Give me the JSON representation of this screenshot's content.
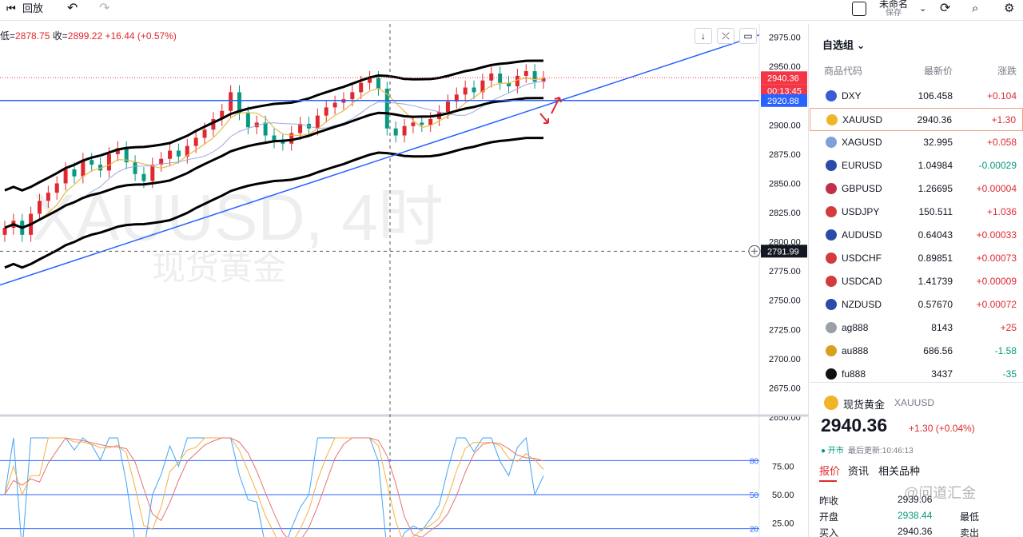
{
  "topbar": {
    "replay_label": "回放",
    "layout_name": "未命名",
    "save_label": "保存"
  },
  "ohlc": {
    "low_label": "低=",
    "low": "2878.75",
    "close_label": "收=",
    "close": "2899.22",
    "change": "+16.44 (+0.57%)"
  },
  "watermark": {
    "symbol": "XAUUSD, 4时",
    "name": "现货黄金"
  },
  "colors": {
    "up": "#e0292f",
    "down": "#089981",
    "trend": "#2962ff",
    "bands": "#000000",
    "price_tag": "#f23645",
    "level_tag": "#2962ff"
  },
  "price_axis": {
    "ticks": [
      "2975.00",
      "2950.00",
      "2925.00",
      "2900.00",
      "2875.00",
      "2850.00",
      "2825.00",
      "2800.00",
      "2775.00",
      "2750.00",
      "2725.00",
      "2700.00",
      "2675.00",
      "2650.00"
    ],
    "last_price": "2940.36",
    "countdown": "00:13:45",
    "level_price": "2920.88",
    "crosshair_price": "2791.99"
  },
  "osc_axis": {
    "ticks": [
      "75.00",
      "50.00",
      "25.00"
    ],
    "levels": [
      "80",
      "50",
      "20"
    ]
  },
  "chart_data": {
    "type": "line",
    "symbol": "XAUUSD",
    "timeframe": "4时",
    "ylim": [
      2650,
      2985
    ],
    "candles_close": [
      2812,
      2818,
      2806,
      2824,
      2835,
      2842,
      2850,
      2862,
      2856,
      2870,
      2866,
      2861,
      2875,
      2880,
      2868,
      2858,
      2852,
      2866,
      2871,
      2878,
      2873,
      2882,
      2889,
      2896,
      2905,
      2912,
      2928,
      2910,
      2898,
      2902,
      2891,
      2886,
      2884,
      2893,
      2901,
      2897,
      2908,
      2915,
      2919,
      2922,
      2928,
      2936,
      2940,
      2931,
      2897,
      2891,
      2899,
      2902,
      2900,
      2905,
      2911,
      2920,
      2926,
      2932,
      2928,
      2938,
      2944,
      2936,
      2933,
      2942,
      2946,
      2937,
      2940
    ],
    "horizontal_level": 2920.88,
    "osc_levels": [
      80,
      50,
      20
    ],
    "watchlist": [
      {
        "sym": "DXY",
        "last": "106.458",
        "chg": "+0.104"
      },
      {
        "sym": "XAUUSD",
        "last": "2940.36",
        "chg": "+1.30"
      },
      {
        "sym": "XAGUSD",
        "last": "32.995",
        "chg": "+0.058"
      },
      {
        "sym": "EURUSD",
        "last": "1.04984",
        "chg": "-0.00029"
      },
      {
        "sym": "GBPUSD",
        "last": "1.26695",
        "chg": "+0.00004"
      },
      {
        "sym": "USDJPY",
        "last": "150.511",
        "chg": "+1.036"
      },
      {
        "sym": "AUDUSD",
        "last": "0.64043",
        "chg": "+0.00033"
      },
      {
        "sym": "USDCHF",
        "last": "0.89851",
        "chg": "+0.00073"
      },
      {
        "sym": "USDCAD",
        "last": "1.41739",
        "chg": "+0.00009"
      },
      {
        "sym": "NZDUSD",
        "last": "0.57670",
        "chg": "+0.00072"
      },
      {
        "sym": "ag888",
        "last": "8143",
        "chg": "+25"
      },
      {
        "sym": "au888",
        "last": "686.56",
        "chg": "-1.58"
      },
      {
        "sym": "fu888",
        "last": "3437",
        "chg": "-35"
      }
    ]
  },
  "sidebar": {
    "title": "自选组",
    "head": {
      "code": "商品代码",
      "last": "最新价",
      "chg": "涨跌"
    },
    "detail": {
      "name": "现货黄金",
      "symbol": "XAUUSD",
      "price": "2940.36",
      "change": "+1.30 (+0.04%)",
      "status": "● 开市",
      "updated": "最后更新:10:46:13",
      "tabs": [
        "报价",
        "资讯",
        "相关品种"
      ],
      "rows": [
        {
          "label": "昨收",
          "value": "2939.06"
        },
        {
          "label": "开盘",
          "value": "2938.44",
          "label2": "最低"
        },
        {
          "label": "买入",
          "value": "2940.36",
          "label2": "卖出"
        }
      ]
    }
  },
  "source_watermark": "@问道汇金"
}
